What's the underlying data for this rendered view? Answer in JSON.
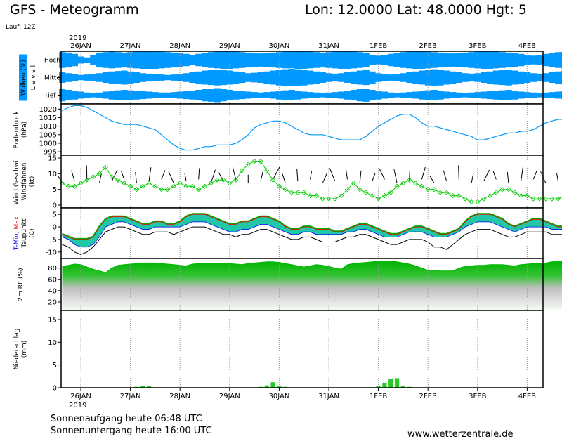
{
  "header": {
    "title": "GFS - Meteogramm",
    "location": "Lon: 12.0000 Lat: 48.0000 Hgt: 5",
    "run": "Lauf: 12Z"
  },
  "footer": {
    "sunrise": "Sonnenaufgang heute 06:48 UTC",
    "sunset": "Sonnenuntergang heute 16:00 UTC",
    "source": "www.wetterzentrale.de"
  },
  "colors": {
    "cloud": "#0099ff",
    "pressure": "#0099ff",
    "wind": "#00cc00",
    "tmin": "#0000ff",
    "tmax": "#ff0000",
    "precip": "#22cc22",
    "rh_green": "#00bb00",
    "dew": "#000000"
  },
  "chart_data": {
    "type": "line",
    "days": [
      "26JAN",
      "27JAN",
      "28JAN",
      "29JAN",
      "30JAN",
      "31JAN",
      "1FEB",
      "2FEB",
      "3FEB",
      "4FEB"
    ],
    "year_label": "2019",
    "steps_per_day": 8,
    "n_steps": 97,
    "grid": true,
    "panels": [
      {
        "id": "clouds",
        "ylabel": [
          "Wolken (%)",
          "L e v e l"
        ],
        "levels": [
          "Hoch",
          "Mittel",
          "Tief"
        ],
        "cover": {
          "hoch": [
            90,
            85,
            70,
            40,
            30,
            60,
            85,
            90,
            95,
            90,
            85,
            90,
            95,
            100,
            100,
            100,
            95,
            90,
            85,
            80,
            70,
            60,
            70,
            80,
            90,
            95,
            100,
            100,
            95,
            90,
            85,
            80,
            75,
            80,
            85,
            90,
            95,
            95,
            100,
            100,
            95,
            90,
            85,
            90,
            95,
            100,
            100,
            95,
            90,
            80,
            60,
            50,
            60,
            70,
            80,
            90,
            95,
            100,
            100,
            95,
            90,
            85,
            80,
            75,
            80,
            85,
            90,
            95,
            100,
            100,
            95,
            90,
            85,
            80,
            70,
            60,
            50,
            60,
            70,
            80,
            90,
            95,
            100,
            100,
            95,
            90,
            85,
            80,
            75,
            70,
            80,
            90,
            95,
            100,
            100,
            95,
            90
          ],
          "mittel": [
            60,
            50,
            40,
            30,
            35,
            40,
            50,
            60,
            70,
            75,
            80,
            70,
            60,
            50,
            45,
            40,
            35,
            30,
            35,
            40,
            50,
            60,
            70,
            80,
            85,
            90,
            85,
            80,
            70,
            60,
            50,
            55,
            60,
            70,
            80,
            90,
            95,
            100,
            95,
            90,
            80,
            70,
            60,
            50,
            45,
            50,
            60,
            70,
            80,
            85,
            70,
            50,
            40,
            35,
            40,
            50,
            60,
            70,
            80,
            90,
            95,
            90,
            80,
            70,
            60,
            50,
            45,
            50,
            60,
            70,
            80,
            85,
            90,
            80,
            70,
            60,
            50,
            45,
            50,
            60,
            70,
            80,
            90,
            95,
            90,
            80,
            70,
            60,
            55,
            50,
            60,
            70,
            80,
            85,
            80,
            70,
            60
          ],
          "tief": [
            70,
            60,
            50,
            40,
            30,
            25,
            30,
            40,
            50,
            55,
            60,
            55,
            50,
            45,
            40,
            35,
            30,
            30,
            35,
            40,
            45,
            50,
            60,
            70,
            75,
            80,
            70,
            60,
            50,
            45,
            40,
            35,
            30,
            35,
            40,
            50,
            55,
            60,
            50,
            40,
            35,
            30,
            25,
            30,
            35,
            40,
            50,
            60,
            70,
            75,
            60,
            50,
            40,
            30,
            25,
            30,
            35,
            40,
            50,
            55,
            60,
            50,
            40,
            35,
            30,
            25,
            30,
            35,
            40,
            45,
            50,
            55,
            60,
            50,
            40,
            35,
            30,
            25,
            30,
            35,
            40,
            45,
            50,
            60,
            55,
            50,
            45,
            40,
            35,
            30,
            35,
            40,
            50,
            55,
            50,
            45,
            40
          ]
        }
      },
      {
        "id": "pressure",
        "ylabel": [
          "Bodendruck",
          "(hPa)"
        ],
        "ylim": [
          993,
          1023
        ],
        "ticks": [
          995,
          1000,
          1005,
          1010,
          1015,
          1020
        ],
        "values": [
          1019,
          1021,
          1022,
          1022,
          1021,
          1019,
          1017,
          1015,
          1013,
          1012,
          1011,
          1011,
          1011,
          1010,
          1009,
          1008,
          1005,
          1002,
          999,
          997,
          996,
          996,
          997,
          998,
          998,
          999,
          999,
          999,
          1000,
          1002,
          1005,
          1009,
          1011,
          1012,
          1013,
          1013,
          1012,
          1010,
          1008,
          1006,
          1005,
          1005,
          1005,
          1004,
          1003,
          1002,
          1002,
          1002,
          1002,
          1004,
          1007,
          1010,
          1012,
          1014,
          1016,
          1017,
          1017,
          1015,
          1012,
          1010,
          1010,
          1009,
          1008,
          1007,
          1006,
          1005,
          1004,
          1002,
          1002,
          1003,
          1004,
          1005,
          1006,
          1006,
          1007,
          1007,
          1008,
          1010,
          1012,
          1013,
          1014,
          1014,
          1014,
          1014,
          1012,
          1011,
          1010,
          1010,
          1009,
          1008,
          1007,
          1007,
          1007,
          1008,
          1009,
          1010,
          1010
        ]
      },
      {
        "id": "wind",
        "ylabel": [
          "Wind Geschwi.",
          "Windfahnen",
          "(kt)"
        ],
        "ylim": [
          0,
          15
        ],
        "ticks": [
          0,
          5,
          10,
          15
        ],
        "values": [
          7,
          6,
          6,
          7,
          8,
          9,
          10,
          12,
          9,
          8,
          7,
          6,
          5,
          6,
          7,
          6,
          5,
          5,
          6,
          7,
          6,
          6,
          5,
          6,
          7,
          8,
          8,
          7,
          8,
          11,
          13,
          14,
          14,
          11,
          8,
          6,
          5,
          4,
          4,
          4,
          3,
          3,
          2,
          2,
          2,
          3,
          5,
          7,
          5,
          4,
          3,
          2,
          3,
          4,
          6,
          7,
          8,
          7,
          6,
          5,
          5,
          4,
          4,
          3,
          3,
          2,
          1,
          1,
          2,
          3,
          4,
          5,
          5,
          4,
          3,
          3,
          2,
          2,
          2,
          2,
          2,
          3,
          3,
          4,
          4,
          4,
          4,
          3,
          2,
          1,
          0,
          0,
          1,
          1,
          2,
          4,
          6
        ]
      },
      {
        "id": "temperature",
        "ylabel": [
          "T-Min, Max",
          "Taupunkt",
          "(C)"
        ],
        "ylim": [
          -12,
          7
        ],
        "ticks": [
          -10,
          -5,
          0,
          5
        ],
        "tmax": [
          -3,
          -4,
          -5,
          -5,
          -5,
          -4,
          0,
          3,
          4,
          4,
          4,
          3,
          2,
          1,
          1,
          2,
          2,
          1,
          1,
          2,
          4,
          5,
          5,
          5,
          4,
          3,
          2,
          1,
          1,
          2,
          2,
          3,
          4,
          4,
          3,
          2,
          0,
          -1,
          -1,
          0,
          0,
          -1,
          -1,
          -1,
          -2,
          -2,
          -1,
          0,
          1,
          1,
          0,
          -1,
          -2,
          -3,
          -3,
          -2,
          -1,
          0,
          0,
          -1,
          -2,
          -3,
          -3,
          -2,
          -1,
          2,
          4,
          5,
          5,
          5,
          4,
          3,
          1,
          0,
          1,
          2,
          3,
          3,
          2,
          1,
          0,
          0,
          0,
          0,
          1,
          1,
          2,
          2,
          1,
          1,
          0,
          0,
          1,
          1,
          2,
          3,
          3
        ],
        "tmin": [
          -4,
          -5,
          -7,
          -8,
          -8,
          -7,
          -4,
          0,
          1,
          2,
          2,
          1,
          0,
          -1,
          -1,
          0,
          0,
          0,
          0,
          0,
          1,
          2,
          2,
          2,
          1,
          0,
          -1,
          -2,
          -2,
          -1,
          -1,
          0,
          1,
          1,
          0,
          -1,
          -2,
          -3,
          -3,
          -2,
          -2,
          -3,
          -3,
          -3,
          -3,
          -3,
          -2,
          -2,
          -1,
          -1,
          -2,
          -3,
          -4,
          -4,
          -4,
          -3,
          -2,
          -2,
          -2,
          -3,
          -4,
          -4,
          -4,
          -3,
          -2,
          0,
          1,
          2,
          2,
          2,
          1,
          0,
          -1,
          -2,
          -1,
          0,
          0,
          0,
          0,
          -1,
          -1,
          -1,
          -1,
          -1,
          -1,
          0,
          0,
          0,
          -1,
          -1,
          -1,
          -1,
          -1,
          0,
          0,
          0,
          0
        ],
        "dew": [
          -7,
          -8,
          -10,
          -11,
          -10,
          -8,
          -5,
          -2,
          -1,
          0,
          0,
          -1,
          -2,
          -3,
          -3,
          -2,
          -2,
          -2,
          -3,
          -2,
          -1,
          0,
          0,
          0,
          -1,
          -2,
          -3,
          -3,
          -4,
          -3,
          -3,
          -2,
          -1,
          -1,
          -2,
          -3,
          -4,
          -5,
          -5,
          -4,
          -4,
          -5,
          -6,
          -6,
          -6,
          -5,
          -4,
          -4,
          -3,
          -3,
          -4,
          -5,
          -6,
          -7,
          -7,
          -6,
          -5,
          -5,
          -5,
          -6,
          -8,
          -8,
          -9,
          -7,
          -5,
          -3,
          -2,
          -1,
          -1,
          -1,
          -2,
          -3,
          -4,
          -4,
          -3,
          -2,
          -2,
          -2,
          -2,
          -3,
          -3,
          -3,
          -3,
          -3,
          -3,
          -2,
          -2,
          -2,
          -3,
          -3,
          -3,
          -3,
          -3,
          -2,
          -2,
          -2,
          -2
        ]
      },
      {
        "id": "humidity",
        "ylabel": [
          "2m RF (%)"
        ],
        "ylim": [
          5,
          97
        ],
        "ticks": [
          20,
          40,
          60,
          80
        ],
        "values": [
          83,
          85,
          87,
          86,
          82,
          78,
          75,
          72,
          80,
          85,
          86,
          87,
          88,
          89,
          89,
          89,
          88,
          87,
          86,
          85,
          84,
          87,
          88,
          88,
          88,
          88,
          88,
          88,
          87,
          86,
          88,
          89,
          90,
          91,
          91,
          90,
          88,
          86,
          84,
          82,
          84,
          86,
          85,
          83,
          80,
          78,
          86,
          88,
          89,
          90,
          91,
          92,
          92,
          92,
          91,
          89,
          87,
          84,
          80,
          76,
          76,
          75,
          75,
          75,
          80,
          83,
          84,
          85,
          85,
          86,
          86,
          86,
          85,
          84,
          86,
          87,
          88,
          88,
          89,
          91,
          92,
          93,
          93,
          93,
          93,
          92,
          92,
          91,
          91,
          90,
          90,
          92,
          93,
          93,
          92,
          91,
          90
        ]
      },
      {
        "id": "precip",
        "ylabel": [
          "Niederschlag",
          "(mm)"
        ],
        "ylim": [
          0,
          17
        ],
        "ticks": [
          0,
          5,
          10,
          15
        ],
        "values": [
          0,
          0,
          0,
          0,
          0,
          0,
          0,
          0,
          0,
          0,
          0,
          0,
          0.2,
          0.4,
          0.4,
          0,
          0,
          0,
          0,
          0,
          0,
          0,
          0,
          0,
          0,
          0,
          0,
          0,
          0,
          0,
          0,
          0,
          0.2,
          0.5,
          1.2,
          0.4,
          0.2,
          0,
          0,
          0,
          0,
          0,
          0,
          0,
          0,
          0,
          0,
          0,
          0,
          0,
          0.1,
          0.4,
          1.1,
          2.0,
          2.1,
          0.4,
          0.2,
          0,
          0,
          0,
          0,
          0,
          0,
          0,
          0,
          0,
          0,
          0,
          0,
          0,
          0,
          0,
          0,
          0,
          0,
          0,
          0,
          0,
          0,
          0,
          0,
          0.2,
          0.3,
          0.2,
          0,
          0,
          0,
          0,
          0,
          0,
          0,
          0,
          0,
          0,
          0,
          0,
          0
        ]
      }
    ]
  }
}
